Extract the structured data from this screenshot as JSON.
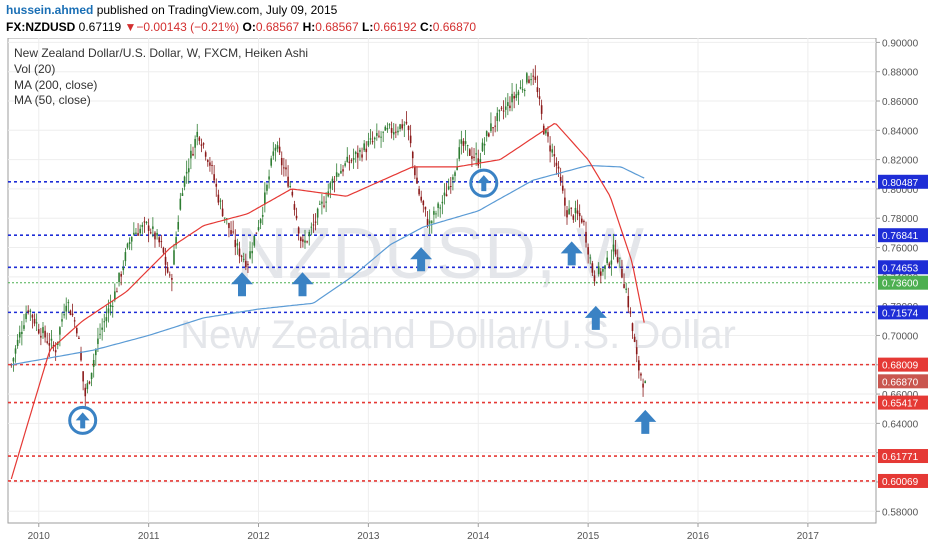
{
  "header": {
    "author": "hussein.ahmed",
    "published": "published on TradingView.com, July 09, 2015",
    "symbol": "FX:NZDUSD",
    "last": "0.67119",
    "change_arrow": "▼",
    "change": "−0.00143 (−0.21%)",
    "o_label": "O:",
    "o_value": "0.68567",
    "h_label": "H:",
    "h_value": "0.68567",
    "l_label": "L:",
    "l_value": "0.66192",
    "c_label": "C:",
    "c_value": "0.66870"
  },
  "legend": [
    "New Zealand Dollar/U.S. Dollar, W, FXCM, Heiken Ashi",
    "Vol (20)",
    "MA (200, close)",
    "MA (50, close)"
  ],
  "watermark": {
    "symbol": "NZDUSD, W",
    "name": "New Zealand Dollar/U.S. Dollar"
  },
  "colors": {
    "up_candle": "#2e7d32",
    "down_candle": "#8b1a1a",
    "ma200": "#5b9bd5",
    "ma50": "#e53935",
    "resistance_line": "#1e2dd6",
    "support_line": "#e53935",
    "green_line": "#4caf50",
    "arrow": "#3a82c4"
  },
  "chart_data": {
    "type": "candlestick",
    "title": "New Zealand Dollar/U.S. Dollar, W, FXCM, Heiken Ashi",
    "ylim": [
      0.572,
      0.903
    ],
    "xlim": [
      2009.72,
      2017.62
    ],
    "y_ticks": [
      "0.90000",
      "0.88000",
      "0.86000",
      "0.84000",
      "0.82000",
      "0.80000",
      "0.78000",
      "0.76000",
      "0.74000",
      "0.72000",
      "0.70000",
      "0.68000",
      "0.66000",
      "0.64000",
      "0.62000",
      "0.60000",
      "0.58000"
    ],
    "x_ticks": [
      {
        "label": "2010",
        "t": 2010.0
      },
      {
        "label": "2011",
        "t": 2011.0
      },
      {
        "label": "2012",
        "t": 2012.0
      },
      {
        "label": "2013",
        "t": 2013.0
      },
      {
        "label": "2014",
        "t": 2014.0
      },
      {
        "label": "2015",
        "t": 2015.0
      },
      {
        "label": "2016",
        "t": 2016.0
      },
      {
        "label": "2017",
        "t": 2017.0
      }
    ],
    "series_anchors": [
      [
        2009.75,
        0.68
      ],
      [
        2009.9,
        0.72
      ],
      [
        2010.0,
        0.705
      ],
      [
        2010.15,
        0.69
      ],
      [
        2010.25,
        0.725
      ],
      [
        2010.35,
        0.705
      ],
      [
        2010.42,
        0.658
      ],
      [
        2010.55,
        0.7
      ],
      [
        2010.7,
        0.73
      ],
      [
        2010.85,
        0.77
      ],
      [
        2011.0,
        0.775
      ],
      [
        2011.12,
        0.76
      ],
      [
        2011.2,
        0.735
      ],
      [
        2011.3,
        0.8
      ],
      [
        2011.45,
        0.84
      ],
      [
        2011.55,
        0.82
      ],
      [
        2011.65,
        0.79
      ],
      [
        2011.8,
        0.76
      ],
      [
        2011.9,
        0.75
      ],
      [
        2012.05,
        0.79
      ],
      [
        2012.15,
        0.83
      ],
      [
        2012.3,
        0.8
      ],
      [
        2012.4,
        0.76
      ],
      [
        2012.5,
        0.775
      ],
      [
        2012.7,
        0.81
      ],
      [
        2012.85,
        0.82
      ],
      [
        2013.0,
        0.83
      ],
      [
        2013.2,
        0.84
      ],
      [
        2013.35,
        0.845
      ],
      [
        2013.45,
        0.8
      ],
      [
        2013.55,
        0.775
      ],
      [
        2013.7,
        0.795
      ],
      [
        2013.85,
        0.83
      ],
      [
        2014.0,
        0.82
      ],
      [
        2014.1,
        0.84
      ],
      [
        2014.25,
        0.855
      ],
      [
        2014.4,
        0.87
      ],
      [
        2014.5,
        0.88
      ],
      [
        2014.6,
        0.84
      ],
      [
        2014.7,
        0.82
      ],
      [
        2014.8,
        0.785
      ],
      [
        2014.95,
        0.78
      ],
      [
        2015.05,
        0.74
      ],
      [
        2015.15,
        0.745
      ],
      [
        2015.25,
        0.76
      ],
      [
        2015.35,
        0.73
      ],
      [
        2015.45,
        0.68
      ],
      [
        2015.52,
        0.665
      ]
    ],
    "ma200": [
      [
        2009.75,
        0.68
      ],
      [
        2010.5,
        0.69
      ],
      [
        2011.0,
        0.7
      ],
      [
        2011.5,
        0.712
      ],
      [
        2012.0,
        0.718
      ],
      [
        2012.5,
        0.722
      ],
      [
        2012.85,
        0.74
      ],
      [
        2013.2,
        0.762
      ],
      [
        2013.5,
        0.774
      ],
      [
        2014.0,
        0.785
      ],
      [
        2014.5,
        0.806
      ],
      [
        2015.0,
        0.816
      ],
      [
        2015.3,
        0.815
      ],
      [
        2015.52,
        0.807
      ]
    ],
    "ma50": [
      [
        2009.75,
        0.602
      ],
      [
        2009.9,
        0.64
      ],
      [
        2010.1,
        0.69
      ],
      [
        2010.4,
        0.71
      ],
      [
        2010.8,
        0.73
      ],
      [
        2011.2,
        0.76
      ],
      [
        2011.5,
        0.775
      ],
      [
        2011.9,
        0.783
      ],
      [
        2012.3,
        0.8
      ],
      [
        2012.8,
        0.795
      ],
      [
        2013.1,
        0.805
      ],
      [
        2013.4,
        0.815
      ],
      [
        2013.8,
        0.815
      ],
      [
        2014.2,
        0.82
      ],
      [
        2014.5,
        0.835
      ],
      [
        2014.7,
        0.845
      ],
      [
        2015.0,
        0.82
      ],
      [
        2015.2,
        0.795
      ],
      [
        2015.4,
        0.75
      ],
      [
        2015.52,
        0.705
      ]
    ],
    "horizontal_levels": [
      {
        "price": 0.80487,
        "label": "0.80487",
        "kind": "resistance"
      },
      {
        "price": 0.76841,
        "label": "0.76841",
        "kind": "resistance"
      },
      {
        "price": 0.74653,
        "label": "0.74653",
        "kind": "resistance"
      },
      {
        "price": 0.736,
        "label": "0.73600",
        "kind": "green"
      },
      {
        "price": 0.71574,
        "label": "0.71574",
        "kind": "resistance"
      },
      {
        "price": 0.68009,
        "label": "0.68009",
        "kind": "support"
      },
      {
        "price": 0.65417,
        "label": "0.65417",
        "kind": "support"
      },
      {
        "price": 0.61771,
        "label": "0.61771",
        "kind": "support"
      },
      {
        "price": 0.60069,
        "label": "0.60069",
        "kind": "support"
      }
    ],
    "last_price": {
      "price": 0.6687,
      "label": "0.66870"
    },
    "arrows": [
      {
        "t": 2010.4,
        "price": 0.642,
        "type": "circle"
      },
      {
        "t": 2011.85,
        "price": 0.735,
        "type": "up"
      },
      {
        "t": 2012.4,
        "price": 0.735,
        "type": "up"
      },
      {
        "t": 2013.48,
        "price": 0.752,
        "type": "up"
      },
      {
        "t": 2014.05,
        "price": 0.804,
        "type": "circle"
      },
      {
        "t": 2014.85,
        "price": 0.756,
        "type": "up"
      },
      {
        "t": 2015.07,
        "price": 0.712,
        "type": "up"
      },
      {
        "t": 2015.52,
        "price": 0.641,
        "type": "up"
      }
    ]
  }
}
